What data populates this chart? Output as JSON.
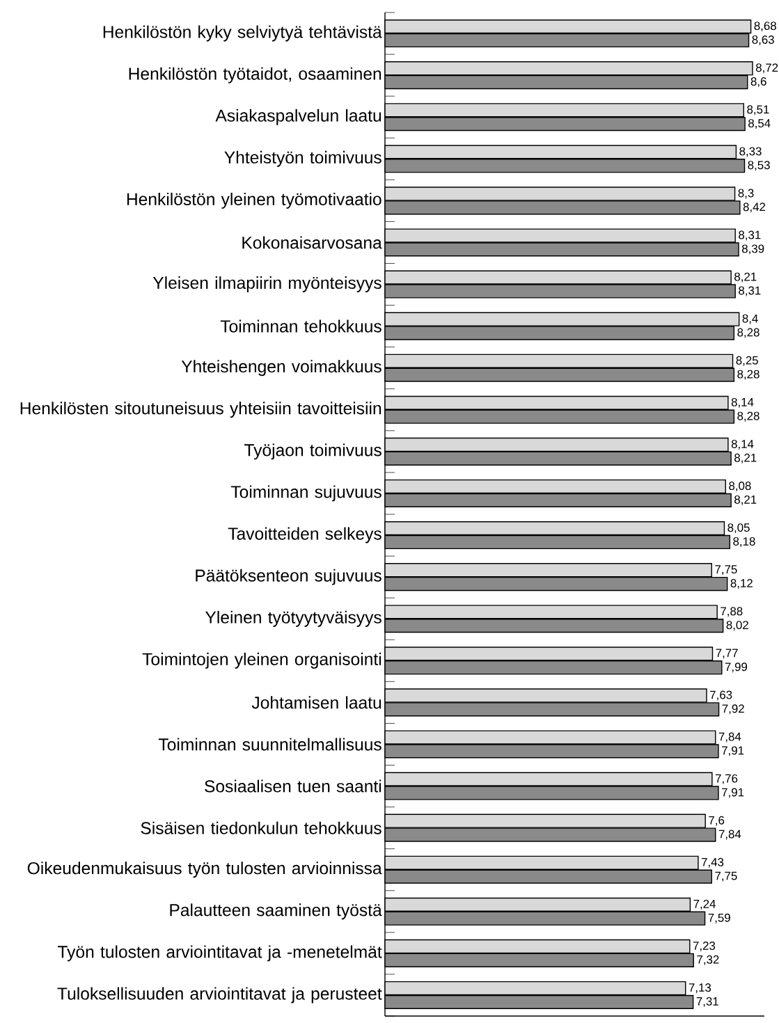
{
  "chart_data": {
    "type": "bar",
    "orientation": "horizontal",
    "categories": [
      "Henkilöstön kyky selviytyä tehtävistä",
      "Henkilöstön työtaidot, osaaminen",
      "Asiakaspalvelun laatu",
      "Yhteistyön toimivuus",
      "Henkilöstön yleinen työmotivaatio",
      "Kokonaisarvosana",
      "Yleisen ilmapiirin myönteisyys",
      "Toiminnan tehokkuus",
      "Yhteishengen voimakkuus",
      "Henkilösten sitoutuneisuus yhteisiin tavoitteisiin",
      "Työjaon toimivuus",
      "Toiminnan sujuvuus",
      "Tavoitteiden selkeys",
      "Päätöksenteon sujuvuus",
      "Yleinen työtyytyväisyys",
      "Toimintojen yleinen organisointi",
      "Johtamisen laatu",
      "Toiminnan suunnitelmallisuus",
      "Sosiaalisen tuen saanti",
      "Sisäisen tiedonkulun tehokkuus",
      "Oikeudenmukaisuus työn tulosten arvioinnissa",
      "Palautteen saaminen työstä",
      "Työn tulosten arviointitavat ja -menetelmät",
      "Tuloksellisuuden arviointitavat ja perusteet"
    ],
    "series": [
      {
        "color": "#d9d9d9",
        "values": [
          8.68,
          8.72,
          8.51,
          8.33,
          8.3,
          8.31,
          8.21,
          8.4,
          8.25,
          8.14,
          8.14,
          8.08,
          8.05,
          7.75,
          7.88,
          7.77,
          7.63,
          7.84,
          7.76,
          7.6,
          7.43,
          7.24,
          7.23,
          7.13
        ],
        "value_labels": [
          "8,68",
          "8,72",
          "8,51",
          "8,33",
          "8,3",
          "8,31",
          "8,21",
          "8,4",
          "8,25",
          "8,14",
          "8,14",
          "8,08",
          "8,05",
          "7,75",
          "7,88",
          "7,77",
          "7,63",
          "7,84",
          "7,76",
          "7,6",
          "7,43",
          "7,24",
          "7,23",
          "7,13"
        ]
      },
      {
        "color": "#8a8a8a",
        "values": [
          8.63,
          8.6,
          8.54,
          8.53,
          8.42,
          8.39,
          8.31,
          8.28,
          8.28,
          8.28,
          8.21,
          8.21,
          8.18,
          8.12,
          8.02,
          7.99,
          7.92,
          7.91,
          7.91,
          7.84,
          7.75,
          7.59,
          7.32,
          7.31
        ],
        "value_labels": [
          "8,63",
          "8,6",
          "8,54",
          "8,53",
          "8,42",
          "8,39",
          "8,31",
          "8,28",
          "8,28",
          "8,28",
          "8,21",
          "8,21",
          "8,18",
          "8,12",
          "8,02",
          "7,99",
          "7,92",
          "7,91",
          "7,91",
          "7,84",
          "7,75",
          "7,59",
          "7,32",
          "7,31"
        ]
      }
    ],
    "xlim": [
      0,
      9
    ],
    "tick_labels": "y"
  }
}
